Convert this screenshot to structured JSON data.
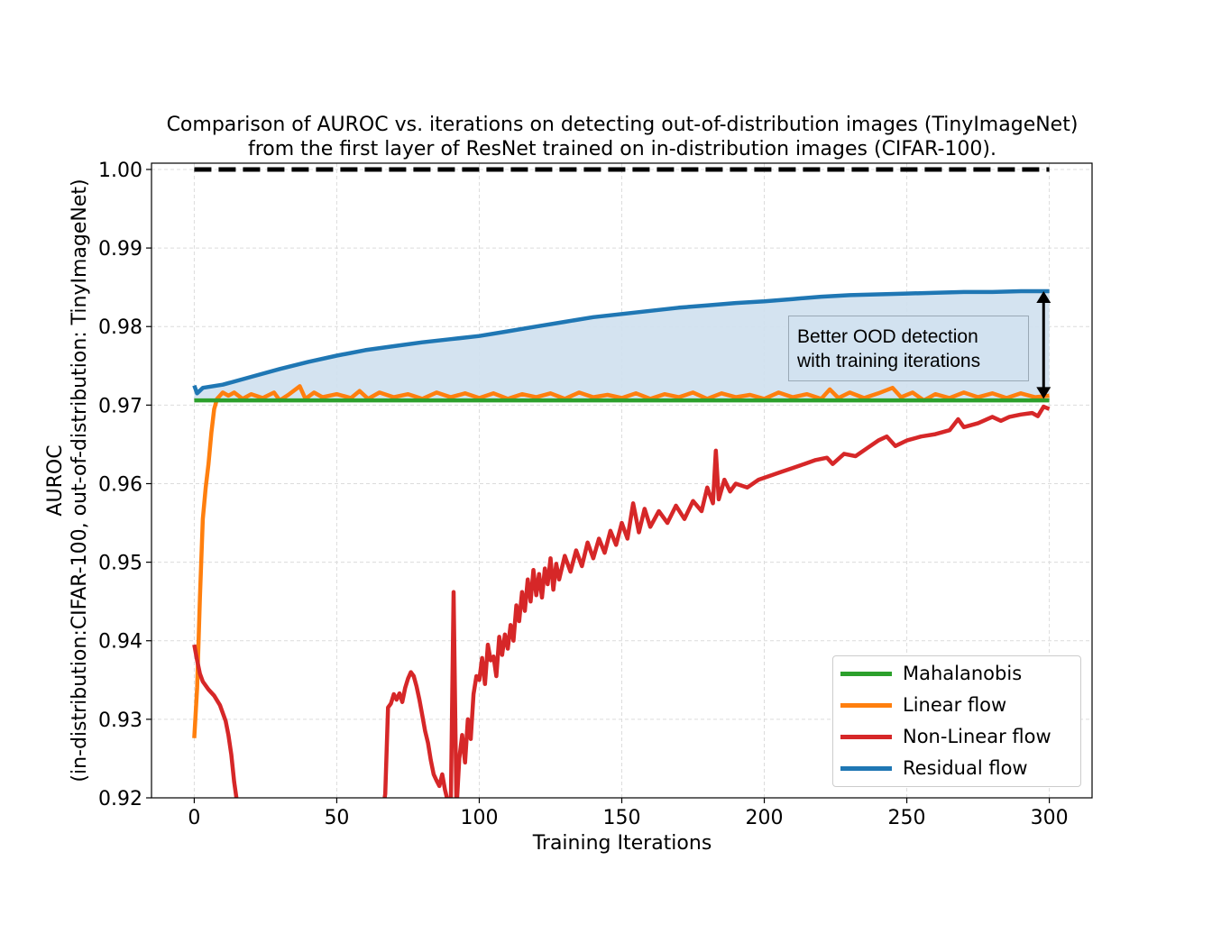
{
  "chart_data": {
    "type": "line",
    "title": "Comparison of AUROC vs. iterations on detecting out-of-distribution images (TinyImageNet)",
    "subtitle": "from the first layer of ResNet trained on in-distribution images (CIFAR-100).",
    "xlabel": "Training Iterations",
    "ylabel_line1": "AUROC",
    "ylabel_line2": "(in-distribution:CIFAR-100, out-of-distribution: TinyImageNet)",
    "xlim": [
      -15,
      315
    ],
    "ylim": [
      0.92,
      1.0008
    ],
    "xticks": [
      0,
      50,
      100,
      150,
      200,
      250,
      300
    ],
    "xtick_labels": [
      "0",
      "50",
      "100",
      "150",
      "200",
      "250",
      "300"
    ],
    "yticks": [
      0.92,
      0.93,
      0.94,
      0.95,
      0.96,
      0.97,
      0.98,
      0.99,
      1.0
    ],
    "ytick_labels": [
      "0.92",
      "0.93",
      "0.94",
      "0.95",
      "0.96",
      "0.97",
      "0.98",
      "0.99",
      "1.00"
    ],
    "grid": true,
    "legend_position": "lower right",
    "reference_line": {
      "y": 1.0,
      "x": [
        0,
        300
      ],
      "style": "dashed",
      "color": "#000000"
    },
    "annotation": {
      "text": "Better OOD detection\nwith training iterations",
      "arrow": {
        "x": 298,
        "y_from": 0.9708,
        "y_to": 0.9845
      }
    },
    "fill_between": {
      "upper": "Residual flow",
      "lower": "Mahalanobis",
      "color": "#cfe0ee"
    },
    "series": [
      {
        "name": "Mahalanobis",
        "color": "#2ca02c",
        "points": [
          [
            0,
            0.9706
          ],
          [
            300,
            0.9706
          ]
        ]
      },
      {
        "name": "Linear flow",
        "color": "#ff7f0e",
        "points": [
          [
            0,
            0.9276
          ],
          [
            1,
            0.934
          ],
          [
            2,
            0.9455
          ],
          [
            3,
            0.9555
          ],
          [
            4,
            0.9595
          ],
          [
            5,
            0.9625
          ],
          [
            6,
            0.9665
          ],
          [
            7,
            0.9695
          ],
          [
            8,
            0.9708
          ],
          [
            9,
            0.9712
          ],
          [
            10,
            0.9716
          ],
          [
            12,
            0.9712
          ],
          [
            14,
            0.9716
          ],
          [
            17,
            0.9708
          ],
          [
            20,
            0.9714
          ],
          [
            24,
            0.9709
          ],
          [
            28,
            0.9716
          ],
          [
            30,
            0.9706
          ],
          [
            33,
            0.9713
          ],
          [
            37,
            0.9724
          ],
          [
            39,
            0.9708
          ],
          [
            42,
            0.9716
          ],
          [
            45,
            0.971
          ],
          [
            50,
            0.9714
          ],
          [
            55,
            0.9709
          ],
          [
            58,
            0.9718
          ],
          [
            61,
            0.9708
          ],
          [
            65,
            0.9716
          ],
          [
            70,
            0.971
          ],
          [
            75,
            0.9714
          ],
          [
            80,
            0.9708
          ],
          [
            85,
            0.9716
          ],
          [
            90,
            0.971
          ],
          [
            95,
            0.9715
          ],
          [
            100,
            0.9709
          ],
          [
            105,
            0.9715
          ],
          [
            110,
            0.9708
          ],
          [
            115,
            0.9714
          ],
          [
            120,
            0.971
          ],
          [
            125,
            0.9715
          ],
          [
            130,
            0.9708
          ],
          [
            135,
            0.9716
          ],
          [
            140,
            0.971
          ],
          [
            145,
            0.9713
          ],
          [
            150,
            0.9709
          ],
          [
            155,
            0.9715
          ],
          [
            160,
            0.9708
          ],
          [
            165,
            0.9714
          ],
          [
            170,
            0.971
          ],
          [
            175,
            0.9716
          ],
          [
            180,
            0.9708
          ],
          [
            185,
            0.9715
          ],
          [
            190,
            0.971
          ],
          [
            195,
            0.9713
          ],
          [
            200,
            0.9708
          ],
          [
            205,
            0.9716
          ],
          [
            210,
            0.971
          ],
          [
            215,
            0.9714
          ],
          [
            220,
            0.9708
          ],
          [
            223,
            0.972
          ],
          [
            226,
            0.9709
          ],
          [
            230,
            0.9716
          ],
          [
            235,
            0.9709
          ],
          [
            240,
            0.9715
          ],
          [
            245,
            0.9722
          ],
          [
            248,
            0.971
          ],
          [
            252,
            0.9716
          ],
          [
            256,
            0.9706
          ],
          [
            260,
            0.9714
          ],
          [
            265,
            0.9709
          ],
          [
            270,
            0.9716
          ],
          [
            275,
            0.971
          ],
          [
            280,
            0.9715
          ],
          [
            285,
            0.9709
          ],
          [
            290,
            0.9715
          ],
          [
            295,
            0.971
          ],
          [
            300,
            0.9712
          ]
        ]
      },
      {
        "name": "Non-Linear flow",
        "color": "#d62728",
        "points": [
          [
            0,
            0.9395
          ],
          [
            1,
            0.9375
          ],
          [
            2,
            0.9358
          ],
          [
            3,
            0.9348
          ],
          [
            5,
            0.9338
          ],
          [
            7,
            0.933
          ],
          [
            9,
            0.9318
          ],
          [
            11,
            0.9298
          ],
          [
            12,
            0.928
          ],
          [
            13,
            0.9255
          ],
          [
            14,
            0.922
          ],
          [
            15,
            0.9195
          ],
          [
            66,
            0.918
          ],
          [
            67,
            0.9205
          ],
          [
            68,
            0.9315
          ],
          [
            69,
            0.932
          ],
          [
            70,
            0.9332
          ],
          [
            71,
            0.9325
          ],
          [
            72,
            0.9333
          ],
          [
            73,
            0.9322
          ],
          [
            74,
            0.934
          ],
          [
            75,
            0.9352
          ],
          [
            76,
            0.936
          ],
          [
            77,
            0.9355
          ],
          [
            78,
            0.9342
          ],
          [
            79,
            0.9325
          ],
          [
            80,
            0.9305
          ],
          [
            81,
            0.9285
          ],
          [
            82,
            0.927
          ],
          [
            83,
            0.9248
          ],
          [
            84,
            0.923
          ],
          [
            85,
            0.9222
          ],
          [
            86,
            0.9215
          ],
          [
            87,
            0.923
          ],
          [
            88,
            0.921
          ],
          [
            89,
            0.9195
          ],
          [
            90,
            0.919
          ],
          [
            91,
            0.9462
          ],
          [
            92,
            0.9185
          ],
          [
            93,
            0.925
          ],
          [
            94,
            0.928
          ],
          [
            95,
            0.9245
          ],
          [
            96,
            0.93
          ],
          [
            97,
            0.9275
          ],
          [
            98,
            0.9332
          ],
          [
            99,
            0.9355
          ],
          [
            100,
            0.935
          ],
          [
            101,
            0.9378
          ],
          [
            102,
            0.9345
          ],
          [
            103,
            0.9395
          ],
          [
            104,
            0.9375
          ],
          [
            105,
            0.938
          ],
          [
            106,
            0.9355
          ],
          [
            107,
            0.9405
          ],
          [
            108,
            0.9382
          ],
          [
            109,
            0.9408
          ],
          [
            110,
            0.939
          ],
          [
            111,
            0.942
          ],
          [
            112,
            0.94
          ],
          [
            113,
            0.9445
          ],
          [
            114,
            0.9425
          ],
          [
            115,
            0.9462
          ],
          [
            116,
            0.9438
          ],
          [
            117,
            0.9478
          ],
          [
            118,
            0.945
          ],
          [
            119,
            0.949
          ],
          [
            120,
            0.9458
          ],
          [
            121,
            0.9485
          ],
          [
            122,
            0.9455
          ],
          [
            123,
            0.9492
          ],
          [
            124,
            0.9472
          ],
          [
            125,
            0.9505
          ],
          [
            126,
            0.9465
          ],
          [
            127,
            0.9498
          ],
          [
            128,
            0.9478
          ],
          [
            130,
            0.9508
          ],
          [
            132,
            0.9488
          ],
          [
            134,
            0.9515
          ],
          [
            136,
            0.9495
          ],
          [
            138,
            0.9525
          ],
          [
            140,
            0.9505
          ],
          [
            142,
            0.953
          ],
          [
            144,
            0.9512
          ],
          [
            146,
            0.954
          ],
          [
            148,
            0.9522
          ],
          [
            150,
            0.955
          ],
          [
            152,
            0.953
          ],
          [
            154,
            0.9575
          ],
          [
            156,
            0.9538
          ],
          [
            158,
            0.9568
          ],
          [
            160,
            0.9545
          ],
          [
            163,
            0.9565
          ],
          [
            166,
            0.955
          ],
          [
            169,
            0.9572
          ],
          [
            172,
            0.9555
          ],
          [
            175,
            0.9578
          ],
          [
            178,
            0.9565
          ],
          [
            180,
            0.9595
          ],
          [
            182,
            0.9575
          ],
          [
            183,
            0.9642
          ],
          [
            184,
            0.958
          ],
          [
            186,
            0.9605
          ],
          [
            188,
            0.959
          ],
          [
            190,
            0.96
          ],
          [
            194,
            0.9595
          ],
          [
            198,
            0.9605
          ],
          [
            202,
            0.961
          ],
          [
            206,
            0.9615
          ],
          [
            210,
            0.962
          ],
          [
            214,
            0.9625
          ],
          [
            218,
            0.963
          ],
          [
            222,
            0.9633
          ],
          [
            224,
            0.9625
          ],
          [
            228,
            0.9638
          ],
          [
            232,
            0.9635
          ],
          [
            236,
            0.9645
          ],
          [
            240,
            0.9655
          ],
          [
            243,
            0.966
          ],
          [
            246,
            0.9648
          ],
          [
            250,
            0.9655
          ],
          [
            255,
            0.966
          ],
          [
            260,
            0.9663
          ],
          [
            265,
            0.9668
          ],
          [
            268,
            0.9682
          ],
          [
            270,
            0.9672
          ],
          [
            275,
            0.9677
          ],
          [
            280,
            0.9685
          ],
          [
            283,
            0.968
          ],
          [
            286,
            0.9685
          ],
          [
            290,
            0.9688
          ],
          [
            294,
            0.969
          ],
          [
            296,
            0.9686
          ],
          [
            298,
            0.9698
          ],
          [
            300,
            0.9695
          ]
        ]
      },
      {
        "name": "Residual flow",
        "color": "#1f77b4",
        "points": [
          [
            0,
            0.9725
          ],
          [
            1,
            0.9715
          ],
          [
            3,
            0.9722
          ],
          [
            10,
            0.9726
          ],
          [
            20,
            0.9736
          ],
          [
            30,
            0.9746
          ],
          [
            40,
            0.9755
          ],
          [
            50,
            0.9763
          ],
          [
            60,
            0.977
          ],
          [
            70,
            0.9775
          ],
          [
            80,
            0.978
          ],
          [
            90,
            0.9784
          ],
          [
            100,
            0.9788
          ],
          [
            110,
            0.9794
          ],
          [
            120,
            0.98
          ],
          [
            130,
            0.9806
          ],
          [
            140,
            0.9812
          ],
          [
            150,
            0.9816
          ],
          [
            160,
            0.982
          ],
          [
            170,
            0.9824
          ],
          [
            180,
            0.9827
          ],
          [
            190,
            0.983
          ],
          [
            200,
            0.9832
          ],
          [
            210,
            0.9835
          ],
          [
            220,
            0.9838
          ],
          [
            230,
            0.984
          ],
          [
            240,
            0.9841
          ],
          [
            250,
            0.9842
          ],
          [
            260,
            0.9843
          ],
          [
            270,
            0.9844
          ],
          [
            280,
            0.9844
          ],
          [
            290,
            0.9845
          ],
          [
            300,
            0.9845
          ]
        ]
      }
    ]
  }
}
